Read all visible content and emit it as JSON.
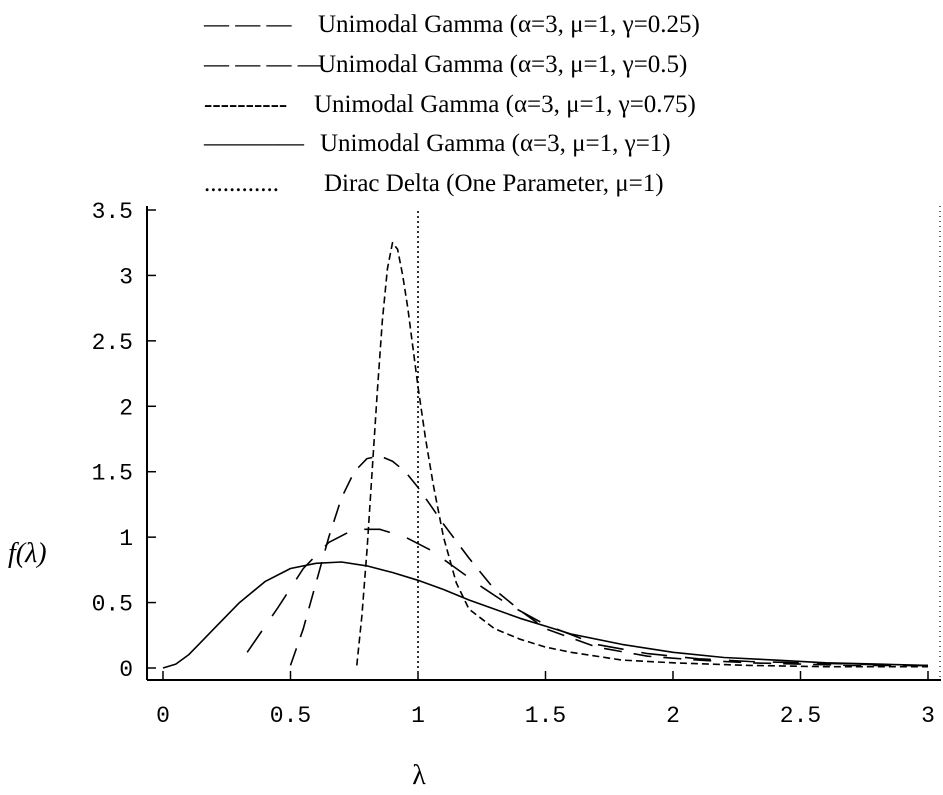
{
  "chart_data": {
    "type": "line",
    "xlabel": "λ",
    "ylabel": "f(λ)",
    "xlim": [
      0,
      3
    ],
    "ylim": [
      0,
      3.5
    ],
    "x_ticks": [
      "0",
      "0.5",
      "1",
      "1.5",
      "2",
      "2.5",
      "3"
    ],
    "y_ticks": [
      "0",
      "0.5",
      "1",
      "1.5",
      "2",
      "2.5",
      "3",
      "3.5"
    ],
    "grid": false,
    "legend_position": "top",
    "series": [
      {
        "name": "Unimodal Gamma (α=3, μ=1, γ=0.25)",
        "legend_marker": "— — —",
        "style": "long-dash",
        "x": [
          0.33,
          0.45,
          0.55,
          0.65,
          0.75,
          0.85,
          0.95,
          1.05,
          1.15,
          1.25,
          1.35,
          1.5,
          1.7,
          1.9,
          2.1,
          2.3,
          2.5,
          2.7,
          2.9,
          3.0
        ],
        "y": [
          0.12,
          0.46,
          0.76,
          0.96,
          1.06,
          1.06,
          1.0,
          0.9,
          0.76,
          0.62,
          0.49,
          0.33,
          0.18,
          0.11,
          0.07,
          0.05,
          0.04,
          0.03,
          0.02,
          0.02
        ]
      },
      {
        "name": "Unimodal Gamma (α=3, μ=1, γ=0.5)",
        "legend_marker": "— — — —",
        "style": "dash",
        "x": [
          0.5,
          0.55,
          0.6,
          0.65,
          0.7,
          0.75,
          0.8,
          0.85,
          0.9,
          0.95,
          1.0,
          1.05,
          1.1,
          1.2,
          1.3,
          1.4,
          1.5,
          1.7,
          1.9,
          2.1,
          2.3,
          2.5,
          2.7,
          3.0
        ],
        "y": [
          0.02,
          0.3,
          0.65,
          1.0,
          1.3,
          1.5,
          1.6,
          1.62,
          1.58,
          1.5,
          1.38,
          1.24,
          1.1,
          0.84,
          0.6,
          0.44,
          0.3,
          0.16,
          0.09,
          0.06,
          0.04,
          0.03,
          0.02,
          0.02
        ]
      },
      {
        "name": "Unimodal Gamma (α=3, μ=1, γ=0.75)",
        "legend_marker": "----------",
        "style": "short-dash",
        "x": [
          0.76,
          0.78,
          0.8,
          0.82,
          0.84,
          0.86,
          0.88,
          0.9,
          0.92,
          0.94,
          0.96,
          0.98,
          1.0,
          1.03,
          1.06,
          1.1,
          1.15,
          1.2,
          1.3,
          1.4,
          1.5,
          1.6,
          1.8,
          2.0,
          2.3,
          2.6,
          3.0
        ],
        "y": [
          0.02,
          0.4,
          0.9,
          1.5,
          2.1,
          2.65,
          3.05,
          3.25,
          3.2,
          3.0,
          2.75,
          2.45,
          2.15,
          1.75,
          1.4,
          1.0,
          0.65,
          0.45,
          0.3,
          0.22,
          0.16,
          0.12,
          0.06,
          0.04,
          0.02,
          0.01,
          0.01
        ]
      },
      {
        "name": "Unimodal Gamma (α=3, μ=1, γ=1)",
        "legend_marker": "————",
        "style": "solid",
        "x": [
          0.0,
          0.05,
          0.1,
          0.15,
          0.2,
          0.3,
          0.4,
          0.5,
          0.6,
          0.7,
          0.8,
          0.9,
          1.0,
          1.1,
          1.2,
          1.3,
          1.4,
          1.5,
          1.6,
          1.8,
          2.0,
          2.2,
          2.4,
          2.6,
          2.8,
          3.0
        ],
        "y": [
          0.0,
          0.03,
          0.1,
          0.2,
          0.3,
          0.5,
          0.66,
          0.76,
          0.8,
          0.81,
          0.78,
          0.73,
          0.67,
          0.6,
          0.52,
          0.45,
          0.38,
          0.32,
          0.26,
          0.18,
          0.12,
          0.08,
          0.06,
          0.04,
          0.03,
          0.02
        ]
      },
      {
        "name": "Dirac Delta (One Parameter, μ=1)",
        "legend_marker": "............",
        "style": "dotted",
        "x": [
          1.0,
          1.0
        ],
        "y": [
          0,
          3.5
        ]
      }
    ]
  }
}
